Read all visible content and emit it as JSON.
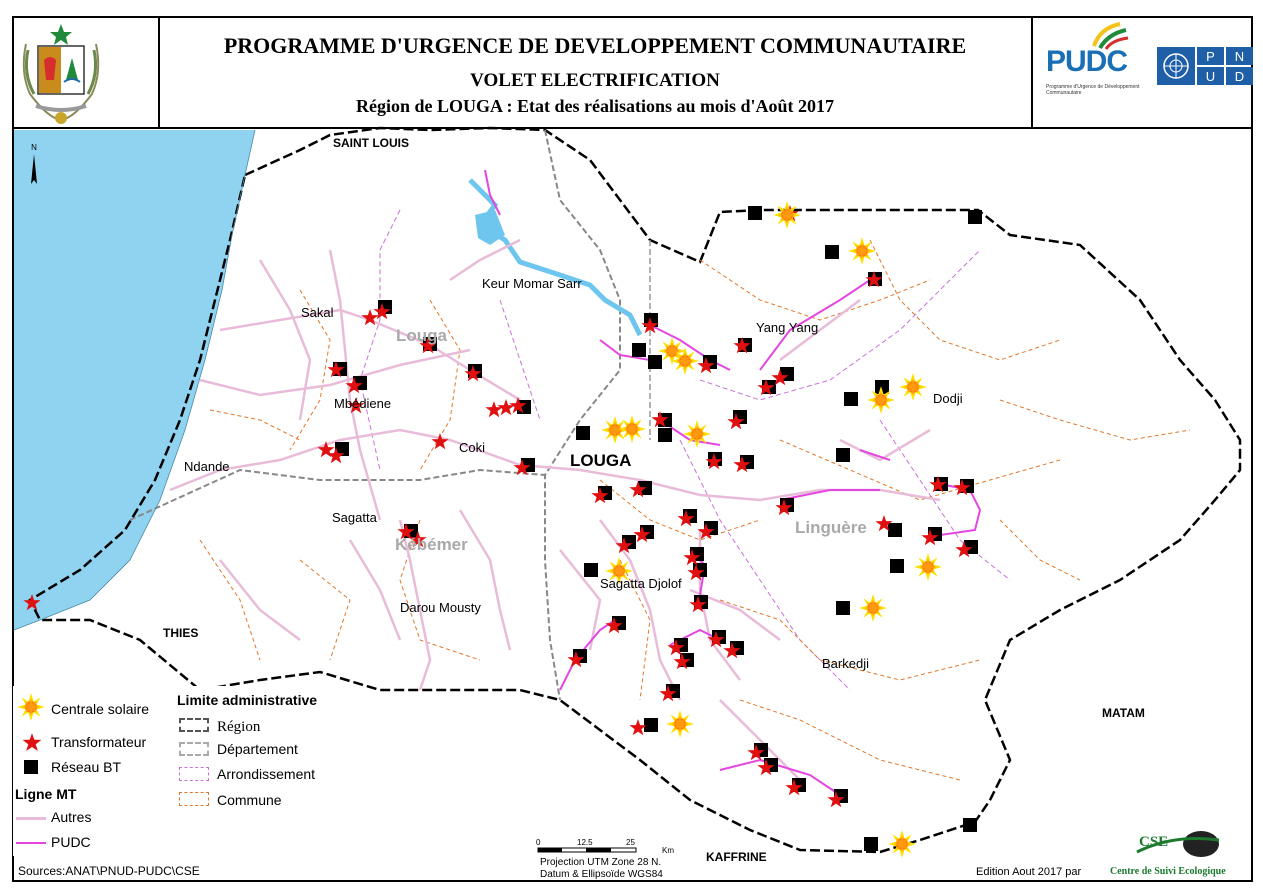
{
  "header": {
    "title": "PROGRAMME D'URGENCE DE DEVELOPPEMENT COMMUNAUTAIRE",
    "subtitle": "VOLET ELECTRIFICATION",
    "subtitle2": "Région de LOUGA : Etat des réalisations au mois d'Août 2017",
    "logo_pudc": "PUDC",
    "logo_pudc_caption": "Programme d'Urgence de Développement Communautaire",
    "logo_pnud": "PNUD"
  },
  "map": {
    "north_label": "N",
    "neighbor_regions": [
      "SAINT LOUIS",
      "THIES",
      "MATAM",
      "KAFFRINE"
    ],
    "region_label": "LOUGA",
    "departments": [
      "Louga",
      "Kébémer",
      "Linguère"
    ],
    "localities": [
      "Keur Momar Sarr",
      "Yang Yang",
      "Sakal",
      "Mbédiene",
      "Coki",
      "Ndande",
      "Sagatta",
      "Darou Mousty",
      "Sagatta Djolof",
      "Dodji",
      "Barkedji"
    ],
    "colors": {
      "sea": "#8fd3f0",
      "river": "#6ec6ee",
      "line_autres": "#e8bcd8",
      "line_pudc": "#e447e0",
      "arrondissement": "#c872d8",
      "commune": "#e0772a",
      "transformateur": "#e01010",
      "solaire": "#ffe000"
    }
  },
  "legend": {
    "solaire": "Centrale solaire",
    "transformateur": "Transformateur",
    "reseau_bt": "Réseau BT",
    "ligne_mt_title": "Ligne MT",
    "autres": "Autres",
    "pudc": "PUDC",
    "limite_title": "Limite administrative",
    "region": "Région",
    "departement": "Département",
    "arrondissement": "Arrondissement",
    "commune": "Commune"
  },
  "scale": {
    "ticks": [
      "0",
      "12.5",
      "25"
    ],
    "unit": "Km",
    "projection": "Projection UTM  Zone 28 N.",
    "datum": "Datum & Ellipsoïde WGS84"
  },
  "footer": {
    "sources": "Sources:ANAT\\PNUD-PUDC\\CSE",
    "edition": "Edition Aout 2017 par",
    "edition_org": "Centre de Suivi Ecologique",
    "cse_logo": "CSE"
  }
}
